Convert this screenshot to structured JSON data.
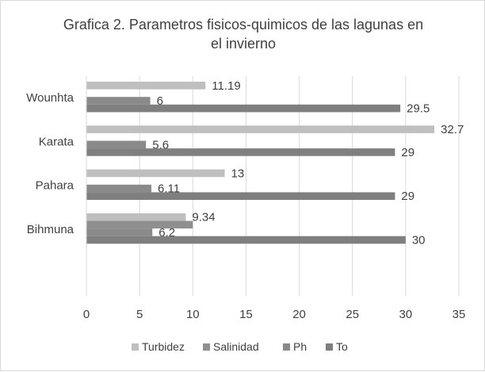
{
  "chart_data": {
    "type": "bar",
    "orientation": "horizontal",
    "title": "Grafica 2. Parametros fisicos-quimicos de las lagunas en el invierno",
    "title_lines": [
      "Grafica 2. Parametros fisicos-quimicos de las lagunas en",
      "el invierno"
    ],
    "categories": [
      "Wounhta",
      "Karata",
      "Pahara",
      "Bihmuna"
    ],
    "series": [
      {
        "name": "Turbidez",
        "color": "#bfbfbf",
        "values": [
          11.19,
          32.7,
          13,
          9.34
        ],
        "labels": [
          "11.19",
          "32.7",
          "13",
          "9.34"
        ]
      },
      {
        "name": "Salinidad",
        "color": "#8f8f8f",
        "values": [
          0,
          0,
          0,
          10
        ],
        "labels": [
          "",
          "",
          "",
          ""
        ]
      },
      {
        "name": "Ph",
        "color": "#8a8a8a",
        "values": [
          6,
          5.6,
          6.11,
          6.2
        ],
        "labels": [
          "6",
          "5.6",
          "6.11",
          "6.2"
        ]
      },
      {
        "name": "To",
        "color": "#7f7f7f",
        "values": [
          29.5,
          29,
          29,
          30
        ],
        "labels": [
          "29.5",
          "29",
          "29",
          "30"
        ]
      }
    ],
    "xlim": [
      0,
      35
    ],
    "xticks": [
      "0",
      "5",
      "10",
      "15",
      "20",
      "25",
      "30",
      "35"
    ],
    "grid": true,
    "legend": "bottom"
  }
}
